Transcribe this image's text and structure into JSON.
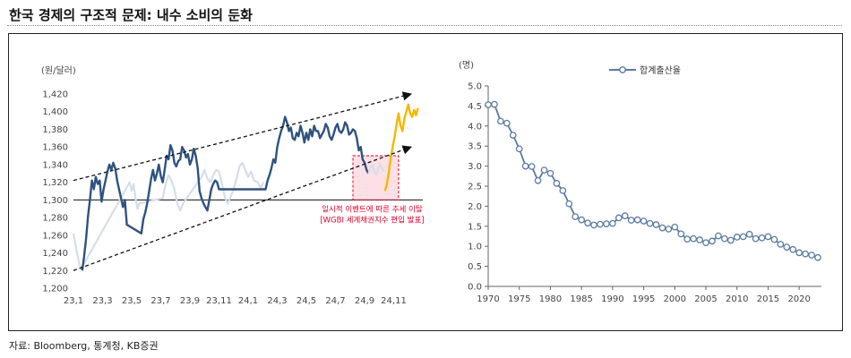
{
  "page": {
    "title": "한국 경제의 구조적 문제: 내수 소비의 둔화",
    "source": "자료: Bloomberg, 통계청, KB증권"
  },
  "colors": {
    "fx_dark": "#2f527f",
    "fx_light": "#d6dde8",
    "fx_recent": "#f5b800",
    "fertility": "#5b7aa0",
    "event_box": "#e4002b"
  },
  "chart_data": [
    {
      "type": "line",
      "ylabel": "(원/달러)",
      "ylim": [
        1200,
        1420
      ],
      "yticks": [
        1200,
        1220,
        1240,
        1260,
        1280,
        1300,
        1320,
        1340,
        1360,
        1380,
        1400,
        1420
      ],
      "xticks": [
        "23,1",
        "23,3",
        "23,5",
        "23,7",
        "23,9",
        "23,11",
        "24,1",
        "24,3",
        "24,5",
        "24,7",
        "24,9",
        "24,11"
      ],
      "annotation": [
        "일시적 이벤트에 따른 추세 이탈",
        "[WGBI 세계채권지수 편입 발표]"
      ],
      "series": [
        {
          "style": "light",
          "values": [
            [
              0.0,
              1262
            ],
            [
              0.2,
              1250
            ],
            [
              0.4,
              1238
            ],
            [
              0.6,
              1228
            ],
            [
              0.8,
              1222
            ],
            [
              5.8,
              1320
            ],
            [
              6.0,
              1310
            ],
            [
              6.2,
              1318
            ],
            [
              6.4,
              1302
            ],
            [
              6.6,
              1290
            ],
            [
              6.8,
              1296
            ],
            [
              9.2,
              1302
            ],
            [
              9.5,
              1318
            ],
            [
              9.8,
              1328
            ],
            [
              10.1,
              1322
            ],
            [
              10.4,
              1312
            ],
            [
              10.7,
              1296
            ],
            [
              11.0,
              1288
            ],
            [
              11.3,
              1296
            ],
            [
              13.2,
              1326
            ],
            [
              13.5,
              1334
            ],
            [
              13.8,
              1324
            ],
            [
              14.1,
              1320
            ],
            [
              14.4,
              1328
            ],
            [
              14.7,
              1334
            ],
            [
              15.0,
              1332
            ],
            [
              15.3,
              1318
            ],
            [
              15.6,
              1303
            ],
            [
              15.9,
              1296
            ],
            [
              16.5,
              1312
            ],
            [
              16.8,
              1324
            ],
            [
              17.1,
              1338
            ],
            [
              17.4,
              1342
            ],
            [
              17.7,
              1334
            ],
            [
              18.0,
              1326
            ],
            [
              18.3,
              1332
            ],
            [
              18.6,
              1322
            ],
            [
              19.0,
              1320
            ],
            [
              19.3,
              1314
            ],
            [
              19.6,
              1320
            ]
          ]
        },
        {
          "style": "dark",
          "values": [
            [
              0.9,
              1220
            ],
            [
              1.1,
              1236
            ],
            [
              1.3,
              1256
            ],
            [
              1.5,
              1282
            ],
            [
              1.7,
              1300
            ],
            [
              1.9,
              1322
            ],
            [
              2.1,
              1312
            ],
            [
              2.3,
              1326
            ],
            [
              2.5,
              1318
            ],
            [
              2.7,
              1322
            ],
            [
              2.9,
              1298
            ],
            [
              3.1,
              1312
            ],
            [
              3.3,
              1322
            ],
            [
              3.5,
              1332
            ],
            [
              3.7,
              1340
            ],
            [
              3.9,
              1334
            ],
            [
              4.1,
              1342
            ],
            [
              4.3,
              1336
            ],
            [
              4.5,
              1322
            ],
            [
              4.7,
              1312
            ],
            [
              4.9,
              1302
            ],
            [
              5.1,
              1292
            ],
            [
              5.3,
              1300
            ],
            [
              5.5,
              1272
            ],
            [
              7.0,
              1262
            ],
            [
              7.2,
              1278
            ],
            [
              7.4,
              1286
            ],
            [
              7.6,
              1296
            ],
            [
              7.8,
              1310
            ],
            [
              8.0,
              1324
            ],
            [
              8.2,
              1334
            ],
            [
              8.4,
              1322
            ],
            [
              8.6,
              1330
            ],
            [
              8.8,
              1340
            ],
            [
              9.0,
              1327
            ],
            [
              9.2,
              1320
            ],
            [
              9.4,
              1334
            ],
            [
              9.6,
              1350
            ],
            [
              9.8,
              1346
            ],
            [
              10.0,
              1362
            ],
            [
              10.2,
              1356
            ],
            [
              10.4,
              1342
            ],
            [
              10.6,
              1338
            ],
            [
              10.8,
              1344
            ],
            [
              11.0,
              1346
            ],
            [
              11.2,
              1360
            ],
            [
              11.4,
              1356
            ],
            [
              11.6,
              1348
            ],
            [
              11.8,
              1352
            ],
            [
              12.0,
              1340
            ],
            [
              12.2,
              1346
            ],
            [
              12.4,
              1358
            ],
            [
              12.6,
              1350
            ],
            [
              12.8,
              1336
            ],
            [
              13.0,
              1310
            ],
            [
              13.2,
              1302
            ],
            [
              13.4,
              1296
            ],
            [
              13.6,
              1292
            ],
            [
              13.8,
              1288
            ],
            [
              14.0,
              1300
            ],
            [
              14.2,
              1312
            ],
            [
              14.4,
              1318
            ],
            [
              14.6,
              1322
            ],
            [
              14.8,
              1320
            ],
            [
              15.0,
              1312
            ],
            [
              19.8,
              1312
            ],
            [
              20.0,
              1322
            ],
            [
              20.2,
              1328
            ],
            [
              20.4,
              1336
            ],
            [
              20.6,
              1346
            ],
            [
              20.8,
              1342
            ],
            [
              21.0,
              1360
            ],
            [
              21.2,
              1370
            ],
            [
              21.4,
              1378
            ],
            [
              21.6,
              1384
            ],
            [
              21.8,
              1394
            ],
            [
              22.0,
              1388
            ],
            [
              22.2,
              1378
            ],
            [
              22.4,
              1382
            ],
            [
              22.6,
              1370
            ],
            [
              22.8,
              1368
            ],
            [
              23.0,
              1376
            ],
            [
              23.2,
              1372
            ],
            [
              23.4,
              1384
            ],
            [
              23.6,
              1376
            ],
            [
              23.8,
              1365
            ],
            [
              24.0,
              1376
            ],
            [
              24.2,
              1368
            ],
            [
              24.4,
              1380
            ],
            [
              24.6,
              1372
            ],
            [
              24.8,
              1384
            ],
            [
              25.0,
              1378
            ],
            [
              25.2,
              1378
            ],
            [
              25.4,
              1370
            ],
            [
              25.6,
              1374
            ],
            [
              25.8,
              1378
            ],
            [
              26.0,
              1386
            ],
            [
              26.2,
              1382
            ],
            [
              26.4,
              1372
            ],
            [
              26.6,
              1368
            ],
            [
              26.8,
              1374
            ],
            [
              27.0,
              1382
            ],
            [
              27.2,
              1386
            ],
            [
              27.4,
              1378
            ],
            [
              27.6,
              1376
            ],
            [
              27.8,
              1380
            ],
            [
              28.0,
              1388
            ],
            [
              28.2,
              1384
            ],
            [
              28.4,
              1374
            ],
            [
              28.6,
              1376
            ],
            [
              28.8,
              1380
            ],
            [
              29.0,
              1378
            ],
            [
              29.2,
              1370
            ],
            [
              29.4,
              1356
            ],
            [
              29.6,
              1360
            ],
            [
              29.8,
              1346
            ],
            [
              30.0,
              1342
            ],
            [
              30.2,
              1334
            ],
            [
              30.4,
              1330
            ]
          ]
        },
        {
          "style": "light",
          "values": [
            [
              30.4,
              1330
            ],
            [
              30.6,
              1336
            ],
            [
              30.8,
              1340
            ],
            [
              31.0,
              1332
            ],
            [
              31.2,
              1328
            ],
            [
              31.4,
              1336
            ],
            [
              31.6,
              1340
            ],
            [
              31.8,
              1336
            ],
            [
              32.0,
              1332
            ]
          ]
        },
        {
          "style": "recent",
          "values": [
            [
              32.1,
              1310
            ],
            [
              32.3,
              1318
            ],
            [
              32.5,
              1332
            ],
            [
              32.7,
              1348
            ],
            [
              32.9,
              1360
            ],
            [
              33.1,
              1372
            ],
            [
              33.3,
              1386
            ],
            [
              33.5,
              1398
            ],
            [
              33.7,
              1384
            ],
            [
              33.9,
              1378
            ],
            [
              34.1,
              1392
            ],
            [
              34.3,
              1400
            ],
            [
              34.5,
              1408
            ],
            [
              34.7,
              1398
            ],
            [
              34.9,
              1394
            ],
            [
              35.1,
              1402
            ],
            [
              35.3,
              1396
            ],
            [
              35.5,
              1404
            ]
          ]
        }
      ],
      "trend_lines": [
        {
          "x": [
            0,
            34.8
          ],
          "y": [
            1322,
            1420
          ]
        },
        {
          "x": [
            0,
            34.8
          ],
          "y": [
            1220,
            1360
          ]
        }
      ],
      "event_region": {
        "x": [
          28.8,
          33.5
        ],
        "y": [
          1300,
          1350
        ]
      }
    },
    {
      "type": "line",
      "ylabel": "(명)",
      "ylim": [
        0.0,
        5.0
      ],
      "yticks": [
        "0.0",
        "0.5",
        "1.0",
        "1.5",
        "2.0",
        "2.5",
        "3.0",
        "3.5",
        "4.0",
        "4.5",
        "5.0"
      ],
      "xticks": [
        "1970",
        "1975",
        "1980",
        "1985",
        "1990",
        "1995",
        "2000",
        "2005",
        "2010",
        "2015",
        "2020"
      ],
      "xlim": [
        1970,
        2023
      ],
      "legend": "합계출산율",
      "legend_position": "top-center",
      "series": [
        {
          "name": "합계출산율",
          "x": [
            1970,
            1971,
            1972,
            1973,
            1974,
            1975,
            1976,
            1977,
            1978,
            1979,
            1980,
            1981,
            1982,
            1983,
            1984,
            1985,
            1986,
            1987,
            1988,
            1989,
            1990,
            1991,
            1992,
            1993,
            1994,
            1995,
            1996,
            1997,
            1998,
            1999,
            2000,
            2001,
            2002,
            2003,
            2004,
            2005,
            2006,
            2007,
            2008,
            2009,
            2010,
            2011,
            2012,
            2013,
            2014,
            2015,
            2016,
            2017,
            2018,
            2019,
            2020,
            2021,
            2022,
            2023
          ],
          "values": [
            4.53,
            4.54,
            4.12,
            4.07,
            3.77,
            3.43,
            3.0,
            2.99,
            2.64,
            2.9,
            2.82,
            2.57,
            2.39,
            2.06,
            1.74,
            1.66,
            1.58,
            1.53,
            1.55,
            1.56,
            1.57,
            1.71,
            1.76,
            1.65,
            1.66,
            1.63,
            1.57,
            1.54,
            1.46,
            1.43,
            1.48,
            1.31,
            1.18,
            1.19,
            1.16,
            1.09,
            1.13,
            1.26,
            1.19,
            1.15,
            1.23,
            1.24,
            1.3,
            1.19,
            1.21,
            1.24,
            1.17,
            1.05,
            0.98,
            0.92,
            0.84,
            0.81,
            0.78,
            0.72
          ]
        }
      ]
    }
  ]
}
